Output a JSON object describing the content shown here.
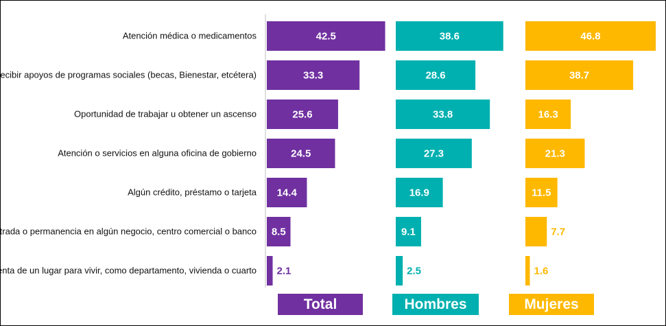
{
  "chart_data": {
    "type": "bar",
    "orientation": "horizontal",
    "categories": [
      "Atención médica o medicamentos",
      "Recibir apoyos de programas sociales (becas, Bienestar, etcétera)",
      "Oportunidad de trabajar u obtener un ascenso",
      "Atención o servicios en alguna oficina de gobierno",
      "Algún crédito, préstamo o tarjeta",
      "Entrada o permanencia en algún negocio, centro comercial o banco",
      "Renta de un lugar para vivir, como departamento, vivienda o cuarto"
    ],
    "series": [
      {
        "name": "Total",
        "color": "#7030A0",
        "values": [
          42.5,
          33.3,
          25.6,
          24.5,
          14.4,
          8.5,
          2.1
        ]
      },
      {
        "name": "Hombres",
        "color": "#00B0B0",
        "values": [
          38.6,
          28.6,
          33.8,
          27.3,
          16.9,
          9.1,
          2.5
        ]
      },
      {
        "name": "Mujeres",
        "color": "#FFB800",
        "values": [
          46.8,
          38.7,
          16.3,
          21.3,
          11.5,
          7.7,
          1.6
        ]
      }
    ],
    "xlim": [
      0,
      46.8
    ],
    "grid": false,
    "legend": "bottom"
  }
}
